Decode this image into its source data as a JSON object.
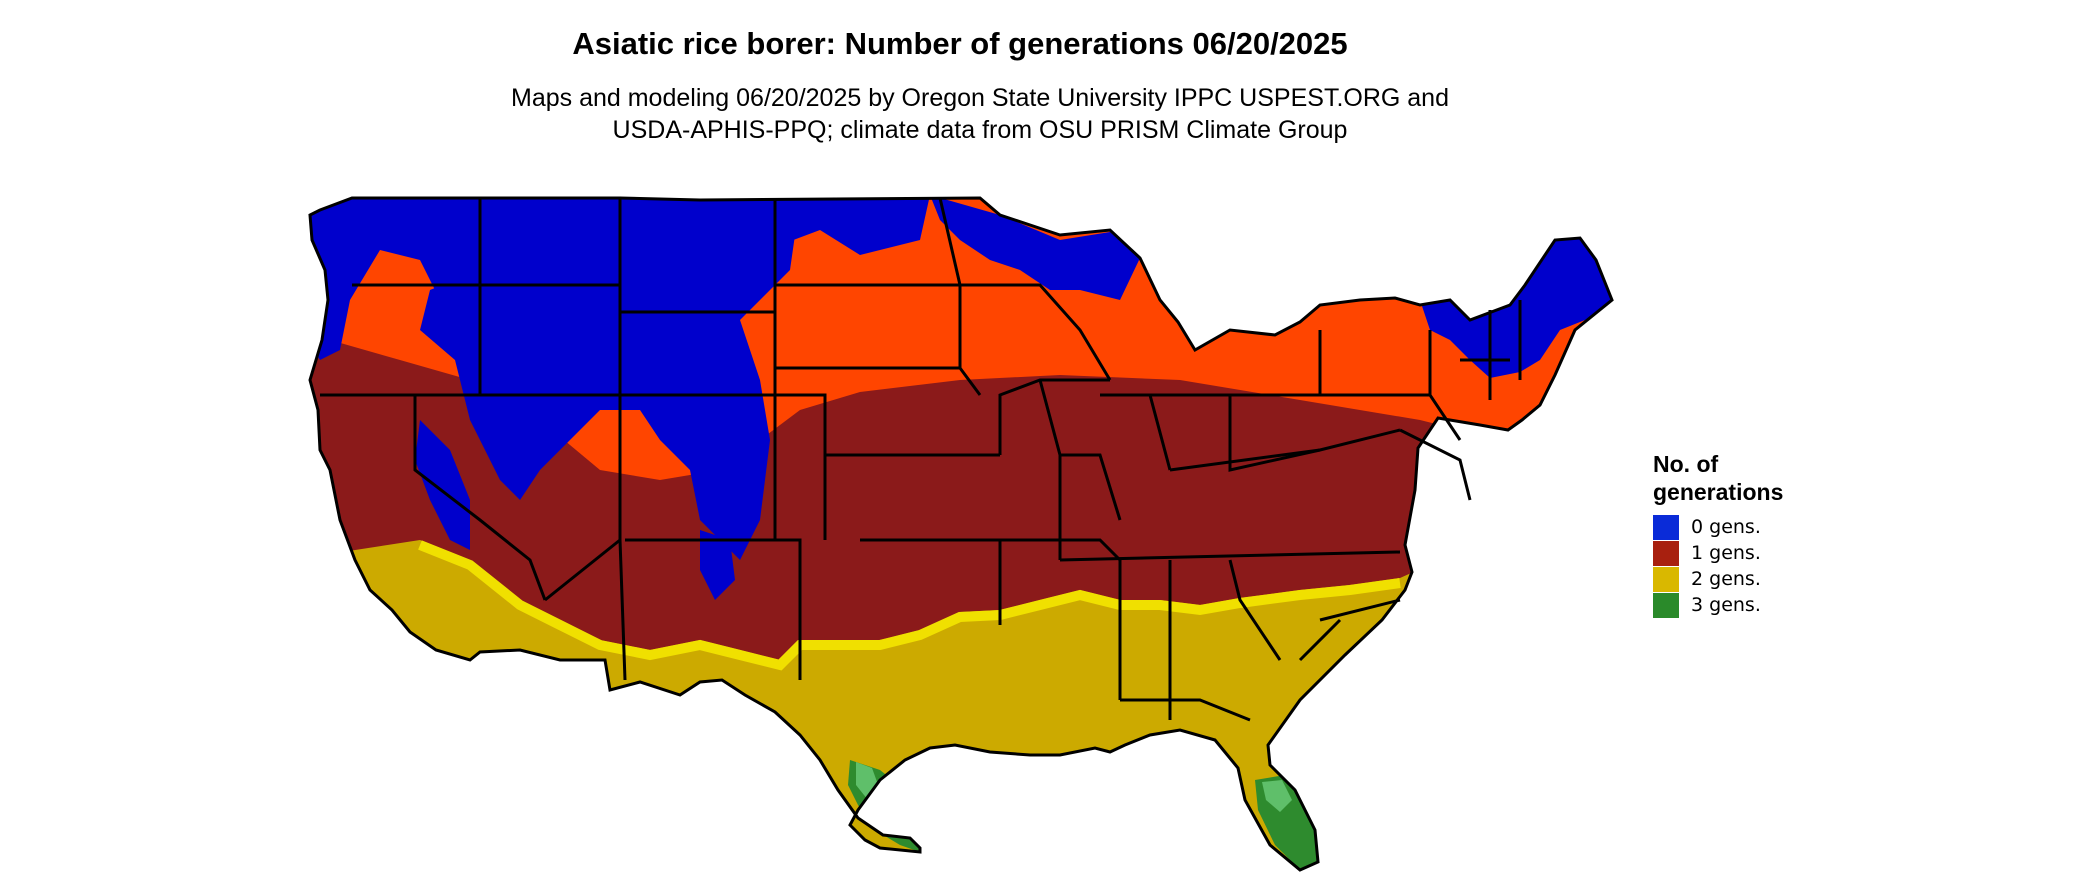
{
  "title": "Asiatic rice borer: Number of generations 06/20/2025",
  "subtitle_line1": "Maps and modeling 06/20/2025 by Oregon State University IPPC USPEST.ORG and",
  "subtitle_line2": "USDA-APHIS-PPQ; climate data from OSU PRISM Climate Group",
  "legend": {
    "title_line1": "No. of",
    "title_line2": "generations",
    "items": [
      {
        "label": "0 gens.",
        "color": "#0a2bd8"
      },
      {
        "label": "1 gens.",
        "color": "#a8200f"
      },
      {
        "label": "2 gens.",
        "color": "#d9b800"
      },
      {
        "label": "3 gens.",
        "color": "#2a8a2a"
      }
    ]
  },
  "colors": {
    "zone0": "#0000cc",
    "zone1_north": "#ff4500",
    "zone1": "#8b1a1a",
    "zone2_edge": "#f0e000",
    "zone2": "#ccaa00",
    "zone3": "#2e8b2e",
    "zone3_light": "#5fbf6a",
    "borders": "#000000"
  }
}
